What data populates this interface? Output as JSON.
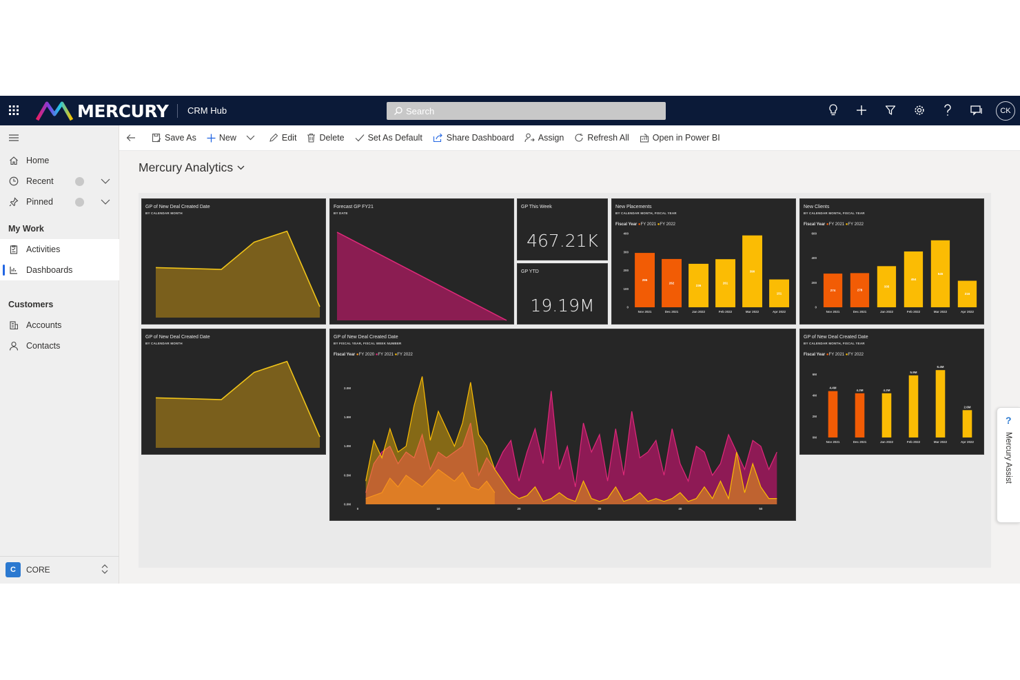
{
  "topbar": {
    "brand": "MERCURY",
    "app_name": "CRM Hub",
    "search_placeholder": "Search",
    "avatar_initials": "CK",
    "icons": [
      "lightbulb-icon",
      "plus-icon",
      "filter-icon",
      "gear-icon",
      "help-icon",
      "chat-icon"
    ]
  },
  "sidebar": {
    "items_top": [
      {
        "label": "Home",
        "icon": "home-icon"
      },
      {
        "label": "Recent",
        "icon": "clock-icon"
      },
      {
        "label": "Pinned",
        "icon": "pin-icon"
      }
    ],
    "section_mywork": "My Work",
    "mywork_items": [
      {
        "label": "Activities",
        "icon": "clipboard-icon"
      },
      {
        "label": "Dashboards",
        "icon": "dashboard-icon"
      }
    ],
    "section_customers": "Customers",
    "customer_items": [
      {
        "label": "Accounts",
        "icon": "building-icon"
      },
      {
        "label": "Contacts",
        "icon": "person-icon"
      }
    ],
    "area_badge": "C",
    "area_label": "CORE"
  },
  "commandbar": {
    "save_as": "Save As",
    "new": "New",
    "edit": "Edit",
    "delete": "Delete",
    "set_default": "Set As Default",
    "share": "Share Dashboard",
    "assign": "Assign",
    "refresh": "Refresh All",
    "open_powerbi": "Open in Power BI"
  },
  "dashboard": {
    "title": "Mercury Analytics"
  },
  "tiles": {
    "gp_new_deal_1": {
      "title": "GP of New Deal Created Date",
      "subtitle": "BY CALENDAR MONTH"
    },
    "forecast": {
      "title": "Forecast GP FY21",
      "subtitle": "BY DATE"
    },
    "gp_week": {
      "title": "GP This Week",
      "value": "467.21K"
    },
    "gp_ytd": {
      "title": "GP YTD",
      "value": "19.19M"
    },
    "placements": {
      "title": "New Placements",
      "subtitle": "BY CALENDAR MONTH, FISCAL YEAR",
      "legend_label": "Fiscal Year",
      "legend": [
        "FY 2021",
        "FY 2022"
      ]
    },
    "clients": {
      "title": "New Clients",
      "subtitle": "BY CALENDAR MONTH, FISCAL YEAR",
      "legend_label": "Fiscal Year",
      "legend": [
        "FY 2021",
        "FY 2022"
      ]
    },
    "gp_new_deal_2": {
      "title": "GP of New Deal Created Date",
      "subtitle": "BY CALENDAR MONTH"
    },
    "gp_weekly": {
      "title": "GP of New Deal Created Date",
      "subtitle": "BY FISCAL YEAR, FISCAL WEEK NUMBER",
      "legend_label": "Fiscal Year",
      "legend": [
        "FY 2020",
        "FY 2021",
        "FY 2022"
      ]
    },
    "gp_monthly": {
      "title": "GP of New Deal Created Date",
      "subtitle": "BY CALENDAR MONTH, FISCAL YEAR",
      "legend_label": "Fiscal Year",
      "legend": [
        "FY 2021",
        "FY 2022"
      ]
    }
  },
  "assist": {
    "label": "Mercury Assist"
  },
  "colors": {
    "fy2020": "#f7931e",
    "fy2021": "#f25c05",
    "fy2022": "#fbbc04",
    "area_gold": "#7a5f1c",
    "area_gold_line": "#f0c419",
    "forecast": "#8b1d52",
    "forecast_line": "#e0297a",
    "fy2021_weekly": "#8e1a55"
  },
  "chart_data": [
    {
      "id": "gp_new_deal_1",
      "type": "area",
      "title": "GP of New Deal Created Date",
      "categories": [
        "",
        "",
        "",
        "",
        "",
        ""
      ],
      "series": [
        {
          "values": [
            0.55,
            0.54,
            0.53,
            0.83,
            0.95,
            0.12
          ]
        }
      ],
      "ylim": [
        0,
        1
      ]
    },
    {
      "id": "forecast",
      "type": "area",
      "title": "Forecast GP FY21",
      "series": [
        {
          "values": [
            1.0,
            0.0
          ]
        }
      ],
      "ylim": [
        0,
        1
      ]
    },
    {
      "id": "placements",
      "type": "bar",
      "title": "New Placements",
      "categories": [
        "Nov 2021",
        "Dec 2021",
        "Jan 2022",
        "Feb 2022",
        "Mar 2022",
        "Apr 2022"
      ],
      "values": [
        295,
        262,
        236,
        261,
        390,
        151
      ],
      "series_of": [
        "FY 2021",
        "FY 2021",
        "FY 2022",
        "FY 2022",
        "FY 2022",
        "FY 2022"
      ],
      "data_labels": [
        "295",
        "262",
        "236",
        "261",
        "390",
        "151"
      ],
      "yticks": [
        "0",
        "100",
        "200",
        "300",
        "400"
      ],
      "ylim": [
        0,
        400
      ]
    },
    {
      "id": "clients",
      "type": "bar",
      "title": "New Clients",
      "categories": [
        "Nov 2021",
        "Dec 2021",
        "Jan 2022",
        "Feb 2022",
        "Mar 2022",
        "Apr 2022"
      ],
      "values": [
        274,
        278,
        335,
        454,
        545,
        216
      ],
      "series_of": [
        "FY 2021",
        "FY 2021",
        "FY 2022",
        "FY 2022",
        "FY 2022",
        "FY 2022"
      ],
      "data_labels": [
        "274",
        "278",
        "335",
        "454",
        "545",
        "216"
      ],
      "yticks": [
        "0",
        "200",
        "400",
        "600"
      ],
      "ylim": [
        0,
        600
      ]
    },
    {
      "id": "gp_new_deal_2",
      "type": "area",
      "title": "GP of New Deal Created Date",
      "series": [
        {
          "values": [
            0.55,
            0.54,
            0.53,
            0.83,
            0.95,
            0.12
          ]
        }
      ],
      "ylim": [
        0,
        1
      ]
    },
    {
      "id": "gp_weekly",
      "type": "area",
      "title": "GP of New Deal Created Date",
      "xticks": [
        "0",
        "10",
        "20",
        "30",
        "40",
        "50"
      ],
      "yticks": [
        "0.0M",
        "0.5M",
        "1.0M",
        "1.5M",
        "2.0M"
      ],
      "ylim": [
        0,
        2.3
      ],
      "xlim": [
        0,
        53
      ],
      "series": [
        {
          "name": "FY 2020",
          "x": [
            1,
            2,
            3,
            4,
            5,
            6,
            7,
            8,
            9,
            10,
            11,
            12,
            13,
            14,
            15,
            16,
            17
          ],
          "values": [
            0.1,
            0.15,
            0.2,
            0.45,
            0.3,
            0.5,
            0.4,
            0.3,
            0.45,
            0.6,
            0.5,
            0.4,
            0.55,
            0.3,
            0.25,
            0.4,
            0.2
          ]
        },
        {
          "name": "FY 2021",
          "x": [
            1,
            2,
            3,
            4,
            5,
            6,
            7,
            8,
            9,
            10,
            11,
            12,
            13,
            14,
            15,
            16,
            17,
            18,
            19,
            20,
            21,
            22,
            23,
            24,
            25,
            26,
            27,
            28,
            29,
            30,
            31,
            32,
            33,
            34,
            35,
            36,
            37,
            38,
            39,
            40,
            41,
            42,
            43,
            44,
            45,
            46,
            47,
            48,
            49,
            50,
            51,
            52
          ],
          "values": [
            0.2,
            0.7,
            0.9,
            1.0,
            0.7,
            0.9,
            0.8,
            1.2,
            0.6,
            0.9,
            0.8,
            0.9,
            1.0,
            1.4,
            0.5,
            0.8,
            0.6,
            0.9,
            1.1,
            0.4,
            0.9,
            1.3,
            0.7,
            1.95,
            0.6,
            1.0,
            0.3,
            1.4,
            0.9,
            1.2,
            0.4,
            1.3,
            0.5,
            1.6,
            0.8,
            0.9,
            1.1,
            0.5,
            1.3,
            0.7,
            0.4,
            1.0,
            0.9,
            0.5,
            0.7,
            1.2,
            0.9,
            0.6,
            1.1,
            1.0,
            0.6,
            0.9
          ]
        },
        {
          "name": "FY 2022",
          "x": [
            1,
            2,
            3,
            4,
            5,
            6,
            7,
            8,
            9,
            10,
            11,
            12,
            13,
            14,
            15,
            16,
            17,
            18,
            19,
            20,
            21,
            22,
            23,
            24,
            25,
            26,
            27,
            28,
            29,
            30,
            31,
            32,
            33,
            34,
            35,
            36,
            37,
            38,
            39,
            40,
            41,
            42,
            43,
            44,
            45,
            46,
            47,
            48,
            49,
            50,
            51,
            52
          ],
          "values": [
            0.4,
            1.1,
            0.8,
            1.3,
            0.9,
            1.0,
            1.7,
            2.2,
            1.1,
            1.6,
            1.3,
            1.0,
            1.4,
            2.1,
            1.2,
            1.0,
            0.6,
            0.4,
            0.2,
            0.1,
            0.15,
            0.3,
            0.05,
            0.1,
            0.2,
            0.1,
            0.05,
            0.4,
            0.1,
            0.05,
            0.1,
            0.3,
            0.05,
            0.1,
            0.2,
            0.05,
            0.1,
            0.05,
            0.1,
            0.2,
            0.05,
            0.1,
            0.3,
            0.1,
            0.4,
            0.1,
            0.9,
            0.2,
            0.7,
            0.3,
            0.1,
            0.1
          ]
        }
      ]
    },
    {
      "id": "gp_monthly",
      "type": "bar",
      "title": "GP of New Deal Created Date",
      "categories": [
        "Nov 2021",
        "Dec 2021",
        "Jan 2022",
        "Feb 2022",
        "Mar 2022",
        "Apr 2022"
      ],
      "values": [
        4.4,
        4.2,
        4.2,
        5.9,
        6.4,
        2.6
      ],
      "series_of": [
        "FY 2021",
        "FY 2021",
        "FY 2022",
        "FY 2022",
        "FY 2022",
        "FY 2022"
      ],
      "data_labels": [
        "4.4M",
        "4.2M",
        "4.2M",
        "5.9M",
        "6.4M",
        "2.6M"
      ],
      "yticks": [
        "0M",
        "2M",
        "4M",
        "6M"
      ],
      "ylim": [
        0,
        7
      ]
    }
  ]
}
